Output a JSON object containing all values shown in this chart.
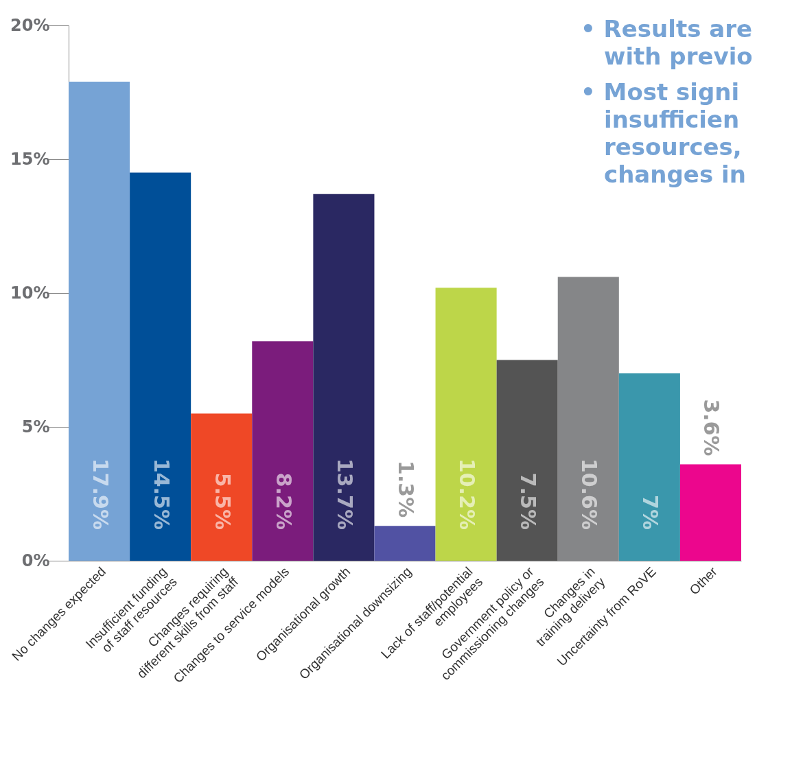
{
  "chart_data": {
    "type": "bar",
    "categories": [
      "No  changes expected",
      "Insufficient funding of staff resources",
      "Changes requiring different skills from staff",
      "Changes to service models",
      "Organisational growth",
      "Organisational downsizing",
      "Lack of staff/potential employees",
      "Government policy or commissioning changes",
      "Changes in training delivery",
      "Uncertainty from RoVE",
      "Other"
    ],
    "values": [
      17.9,
      14.5,
      5.5,
      8.2,
      13.7,
      1.3,
      10.2,
      7.5,
      10.6,
      7,
      3.6
    ],
    "colors": [
      "#76a3d5",
      "#004f98",
      "#ef4826",
      "#7b1c7c",
      "#2a2862",
      "#5152a3",
      "#bdd649",
      "#545454",
      "#858688",
      "#3a97ac",
      "#ec068d"
    ],
    "value_labels": [
      "17.9%",
      "14.5%",
      "5.5%",
      "8.2%",
      "13.7%",
      "1.3%",
      "10.2%",
      "7.5%",
      "10.6%",
      "7%",
      "3.6%"
    ],
    "ylim": [
      0,
      20
    ],
    "yticks": [
      {
        "value": 0,
        "label": "0%"
      },
      {
        "value": 5,
        "label": "5%"
      },
      {
        "value": 10,
        "label": "10%"
      },
      {
        "value": 15,
        "label": "15%"
      },
      {
        "value": 20,
        "label": "20%"
      }
    ],
    "grid": false,
    "annotations": [
      "• Results are",
      "with previo",
      "• Most signi",
      "insufficien",
      "resources,",
      "changes in"
    ]
  }
}
